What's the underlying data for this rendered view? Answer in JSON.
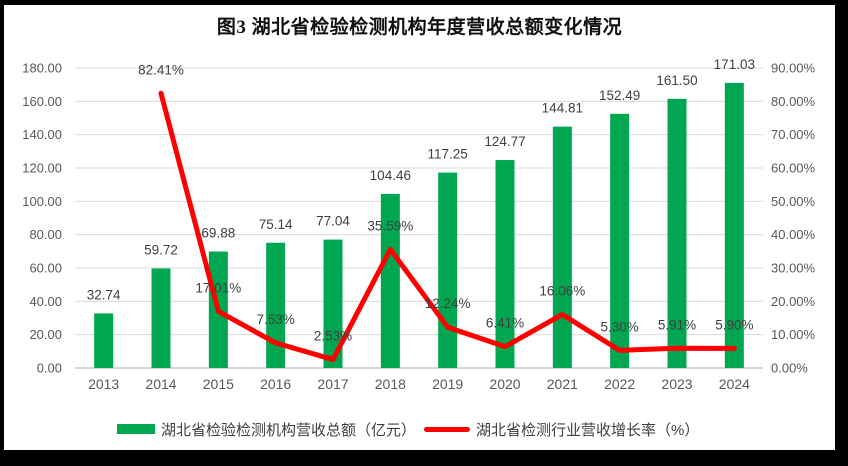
{
  "title": "图3 湖北省检验检测机构年度营收总额变化情况",
  "colors": {
    "gridline": "#D9D9D9",
    "axis_line": "#BFBFBF",
    "tick_text": "#595959",
    "label_text": "#404040",
    "bar": "#00A650",
    "line": "#FF0000"
  },
  "chart_data": {
    "type": "combo-bar-line",
    "title": "图3 湖北省检验检测机构年度营收总额变化情况",
    "categories": [
      "2013",
      "2014",
      "2015",
      "2016",
      "2017",
      "2018",
      "2019",
      "2020",
      "2021",
      "2022",
      "2023",
      "2024"
    ],
    "series": [
      {
        "name": "湖北省检验检测机构营收总额（亿元）",
        "type": "bar",
        "axis": "left",
        "color": "#00A650",
        "values": [
          32.74,
          59.72,
          69.88,
          75.14,
          77.04,
          104.46,
          117.25,
          124.77,
          144.81,
          152.49,
          161.5,
          171.03
        ],
        "labels": [
          "32.74",
          "59.72",
          "69.88",
          "75.14",
          "77.04",
          "104.46",
          "117.25",
          "124.77",
          "144.81",
          "152.49",
          "161.50",
          "171.03"
        ]
      },
      {
        "name": "湖北省检测行业营收增长率（%）",
        "type": "line",
        "axis": "right",
        "color": "#FF0000",
        "values": [
          null,
          82.41,
          17.01,
          7.53,
          2.53,
          35.59,
          12.24,
          6.41,
          16.06,
          5.3,
          5.91,
          5.9
        ],
        "labels": [
          null,
          "82.41%",
          "17.01%",
          "7.53%",
          "2.53%",
          "35.59%",
          "12.24%",
          "6.41%",
          "16.06%",
          "5.30%",
          "5.91%",
          "5.90%"
        ]
      }
    ],
    "left_axis": {
      "min": 0,
      "max": 180,
      "step": 20,
      "ticks": [
        "0.00",
        "20.00",
        "40.00",
        "60.00",
        "80.00",
        "100.00",
        "120.00",
        "140.00",
        "160.00",
        "180.00"
      ]
    },
    "right_axis": {
      "min": 0,
      "max": 90,
      "step": 10,
      "ticks": [
        "0.00%",
        "10.00%",
        "20.00%",
        "30.00%",
        "40.00%",
        "50.00%",
        "60.00%",
        "70.00%",
        "80.00%",
        "90.00%"
      ]
    },
    "grid": true,
    "legend_position": "bottom"
  }
}
